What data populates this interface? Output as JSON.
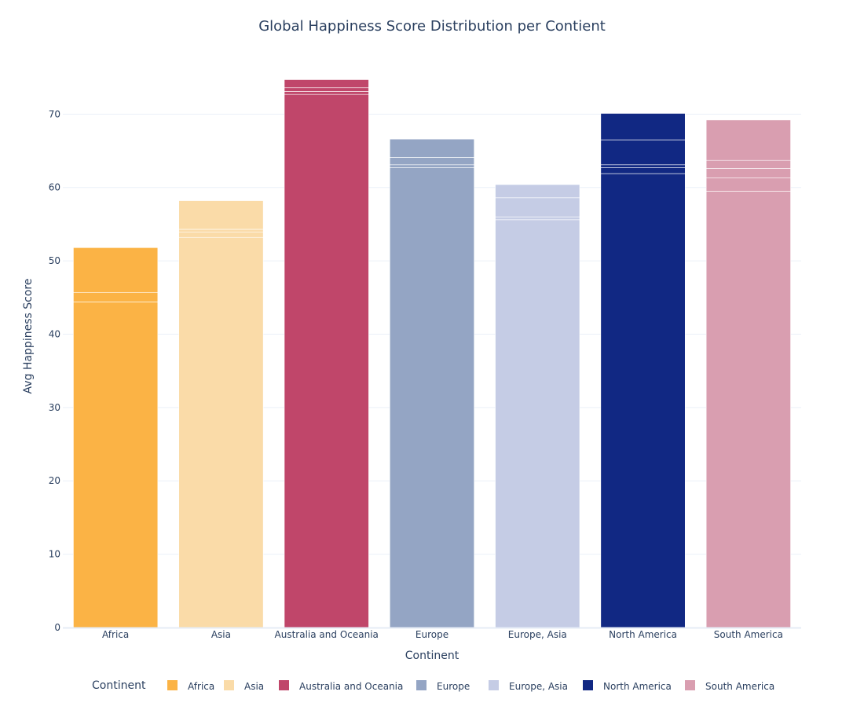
{
  "chart_data": {
    "type": "bar",
    "barmode": "stack",
    "title": "Global Happiness Score Distribution per Contient",
    "xlabel": "Continent",
    "ylabel": "Avg Happiness Score",
    "ylim": [
      0,
      77
    ],
    "yticks": [
      0,
      10,
      20,
      30,
      40,
      50,
      60,
      70
    ],
    "grid": true,
    "legend": {
      "title": "Continent",
      "placement": "bottom"
    },
    "categories": [
      "Africa",
      "Asia",
      "Australia and Oceania",
      "Europe",
      "Europe, Asia",
      "North America",
      "South America"
    ],
    "series": [
      {
        "name": "Africa",
        "color": "#FBB345",
        "segments": [
          44.4,
          1.3,
          6.1
        ]
      },
      {
        "name": "Asia",
        "color": "#FADBA8",
        "segments": [
          53.2,
          0.7,
          0.4,
          3.9
        ]
      },
      {
        "name": "Australia and Oceania",
        "color": "#C0466A",
        "segments": [
          72.7,
          0.4,
          0.5,
          1.1
        ]
      },
      {
        "name": "Europe",
        "color": "#94A5C4",
        "segments": [
          62.7,
          0.4,
          1.0,
          2.5
        ]
      },
      {
        "name": "Europe, Asia",
        "color": "#C5CCE5",
        "segments": [
          55.6,
          0.4,
          2.6,
          1.8
        ]
      },
      {
        "name": "North America",
        "color": "#112883",
        "segments": [
          61.9,
          0.8,
          0.4,
          3.4,
          3.6
        ]
      },
      {
        "name": "South America",
        "color": "#D99EB0",
        "segments": [
          59.5,
          1.8,
          1.3,
          1.1,
          5.5
        ]
      }
    ]
  }
}
